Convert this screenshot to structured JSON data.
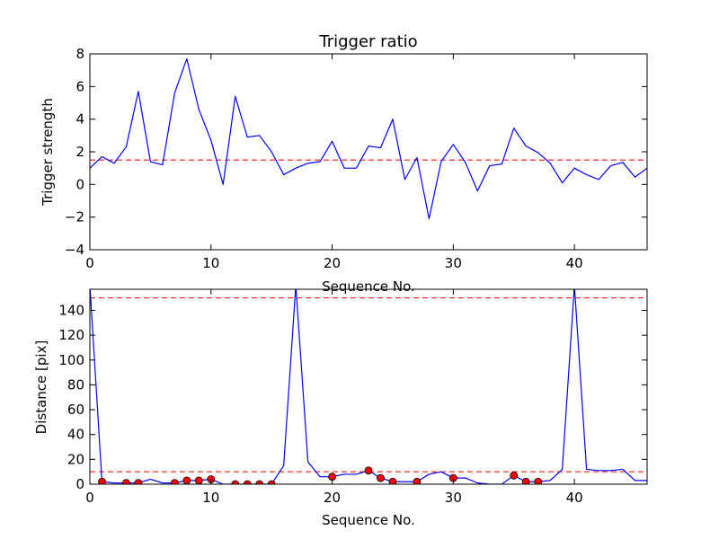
{
  "chart_data": [
    {
      "type": "line",
      "title": "Trigger ratio",
      "xlabel": "Sequence No.",
      "ylabel": "Trigger strength",
      "xlim": [
        0,
        46
      ],
      "ylim": [
        -4,
        8
      ],
      "xticks": [
        0,
        10,
        20,
        30,
        40
      ],
      "xtick_labels": [
        "0",
        "10",
        "20",
        "30",
        "40"
      ],
      "yticks": [
        -4,
        -2,
        0,
        2,
        4,
        6,
        8
      ],
      "ytick_labels": [
        "−4",
        "−2",
        "0",
        "2",
        "4",
        "6",
        "8"
      ],
      "grid": false,
      "series": [
        {
          "color": "#0000ff",
          "x": [
            0,
            1,
            2,
            3,
            4,
            5,
            6,
            7,
            8,
            9,
            10,
            11,
            12,
            13,
            14,
            15,
            16,
            17,
            18,
            19,
            20,
            21,
            22,
            23,
            24,
            25,
            26,
            27,
            28,
            29,
            30,
            31,
            32,
            33,
            34,
            35,
            36,
            37,
            38,
            39,
            40,
            41,
            42,
            43,
            44,
            45,
            46
          ],
          "y": [
            1.0,
            1.7,
            1.3,
            2.3,
            5.7,
            1.4,
            1.2,
            5.6,
            7.7,
            4.6,
            2.7,
            0.0,
            5.4,
            2.9,
            3.0,
            2.0,
            0.6,
            1.0,
            1.3,
            1.4,
            2.65,
            1.0,
            1.0,
            2.35,
            2.25,
            4.0,
            0.3,
            1.65,
            -2.1,
            1.4,
            2.45,
            1.35,
            -0.4,
            1.15,
            1.25,
            3.45,
            2.35,
            1.95,
            1.3,
            0.1,
            1.0,
            0.6,
            0.3,
            1.15,
            1.35,
            0.45,
            1.0
          ]
        }
      ],
      "hlines": [
        {
          "y": 1.5,
          "color": "#ff0000",
          "style": "dashed"
        }
      ]
    },
    {
      "type": "line",
      "title": "",
      "xlabel": "Sequence No.",
      "ylabel": "Distance [pix]",
      "xlim": [
        0,
        46
      ],
      "ylim": [
        0,
        157
      ],
      "xticks": [
        0,
        10,
        20,
        30,
        40
      ],
      "xtick_labels": [
        "0",
        "10",
        "20",
        "30",
        "40"
      ],
      "yticks": [
        0,
        20,
        40,
        60,
        80,
        100,
        120,
        140
      ],
      "ytick_labels": [
        "0",
        "20",
        "40",
        "60",
        "80",
        "100",
        "120",
        "140"
      ],
      "grid": false,
      "series": [
        {
          "color": "#0000ff",
          "x": [
            0,
            1,
            2,
            3,
            4,
            5,
            6,
            7,
            8,
            9,
            10,
            11,
            12,
            13,
            14,
            15,
            16,
            17,
            18,
            19,
            20,
            21,
            22,
            23,
            24,
            25,
            26,
            27,
            28,
            29,
            30,
            31,
            32,
            33,
            34,
            35,
            36,
            37,
            38,
            39,
            40,
            41,
            42,
            43,
            44,
            45,
            46
          ],
          "y": [
            160,
            2,
            1,
            1,
            1,
            4,
            1,
            1,
            3,
            3,
            4,
            0,
            0,
            0,
            0,
            0,
            15,
            160,
            18,
            6,
            6,
            8,
            8,
            11,
            5,
            2,
            2,
            2,
            8,
            10,
            5,
            5,
            1,
            0,
            0,
            7,
            2,
            2,
            3,
            12,
            160,
            12,
            11,
            11,
            12,
            3,
            3
          ]
        },
        {
          "color": "#ff0000",
          "marker": "circle",
          "points": [
            [
              1,
              2
            ],
            [
              3,
              1
            ],
            [
              4,
              1
            ],
            [
              7,
              1
            ],
            [
              8,
              3
            ],
            [
              9,
              3
            ],
            [
              10,
              4
            ],
            [
              12,
              0
            ],
            [
              13,
              0
            ],
            [
              14,
              0
            ],
            [
              15,
              0
            ],
            [
              20,
              6
            ],
            [
              23,
              11
            ],
            [
              24,
              5
            ],
            [
              25,
              2
            ],
            [
              27,
              2
            ],
            [
              30,
              5
            ],
            [
              35,
              7
            ],
            [
              36,
              2
            ],
            [
              37,
              2
            ]
          ]
        }
      ],
      "hlines": [
        {
          "y": 150,
          "color": "#ff0000",
          "style": "dashed"
        },
        {
          "y": 10,
          "color": "#ff0000",
          "style": "dashed"
        }
      ]
    }
  ]
}
